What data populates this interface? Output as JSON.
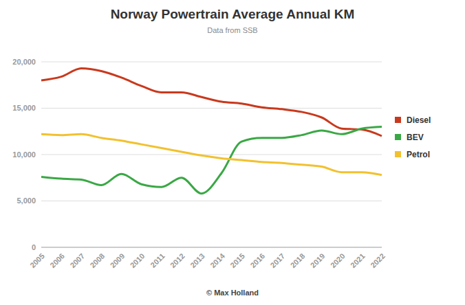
{
  "chart_data": {
    "type": "line",
    "title": "Norway Powertrain Average Annual KM",
    "subtitle": "Data from SSB",
    "footer": "© Max Holland",
    "categories": [
      "2005",
      "2006",
      "2007",
      "2008",
      "2009",
      "2010",
      "2011",
      "2012",
      "2013",
      "2014",
      "2015",
      "2016",
      "2017",
      "2018",
      "2019",
      "2020",
      "2021",
      "2022"
    ],
    "series": [
      {
        "name": "Diesel",
        "color": "#c9391d",
        "values": [
          18000,
          18400,
          19300,
          19000,
          18300,
          17400,
          16700,
          16700,
          16200,
          15700,
          15500,
          15100,
          14900,
          14600,
          14000,
          12800,
          12700,
          12000
        ]
      },
      {
        "name": "BEV",
        "color": "#3aa845",
        "values": [
          7600,
          7400,
          7300,
          6700,
          7900,
          6800,
          6500,
          7500,
          5800,
          8000,
          11400,
          11800,
          11800,
          12100,
          12600,
          12200,
          12800,
          13000
        ]
      },
      {
        "name": "Petrol",
        "color": "#f2c12e",
        "values": [
          12200,
          12100,
          12200,
          11800,
          11500,
          11100,
          10700,
          10300,
          9900,
          9600,
          9400,
          9200,
          9100,
          8900,
          8700,
          8100,
          8100,
          7800
        ]
      }
    ],
    "ylim": [
      0,
      20000
    ],
    "yticks": [
      0,
      {
        "value": 5000,
        "label": "5,000"
      },
      {
        "value": 10000,
        "label": "10,000"
      },
      {
        "value": 15000,
        "label": "15,000"
      },
      {
        "value": 20000,
        "label": "20,000"
      }
    ],
    "grid": true,
    "legend": "right"
  }
}
